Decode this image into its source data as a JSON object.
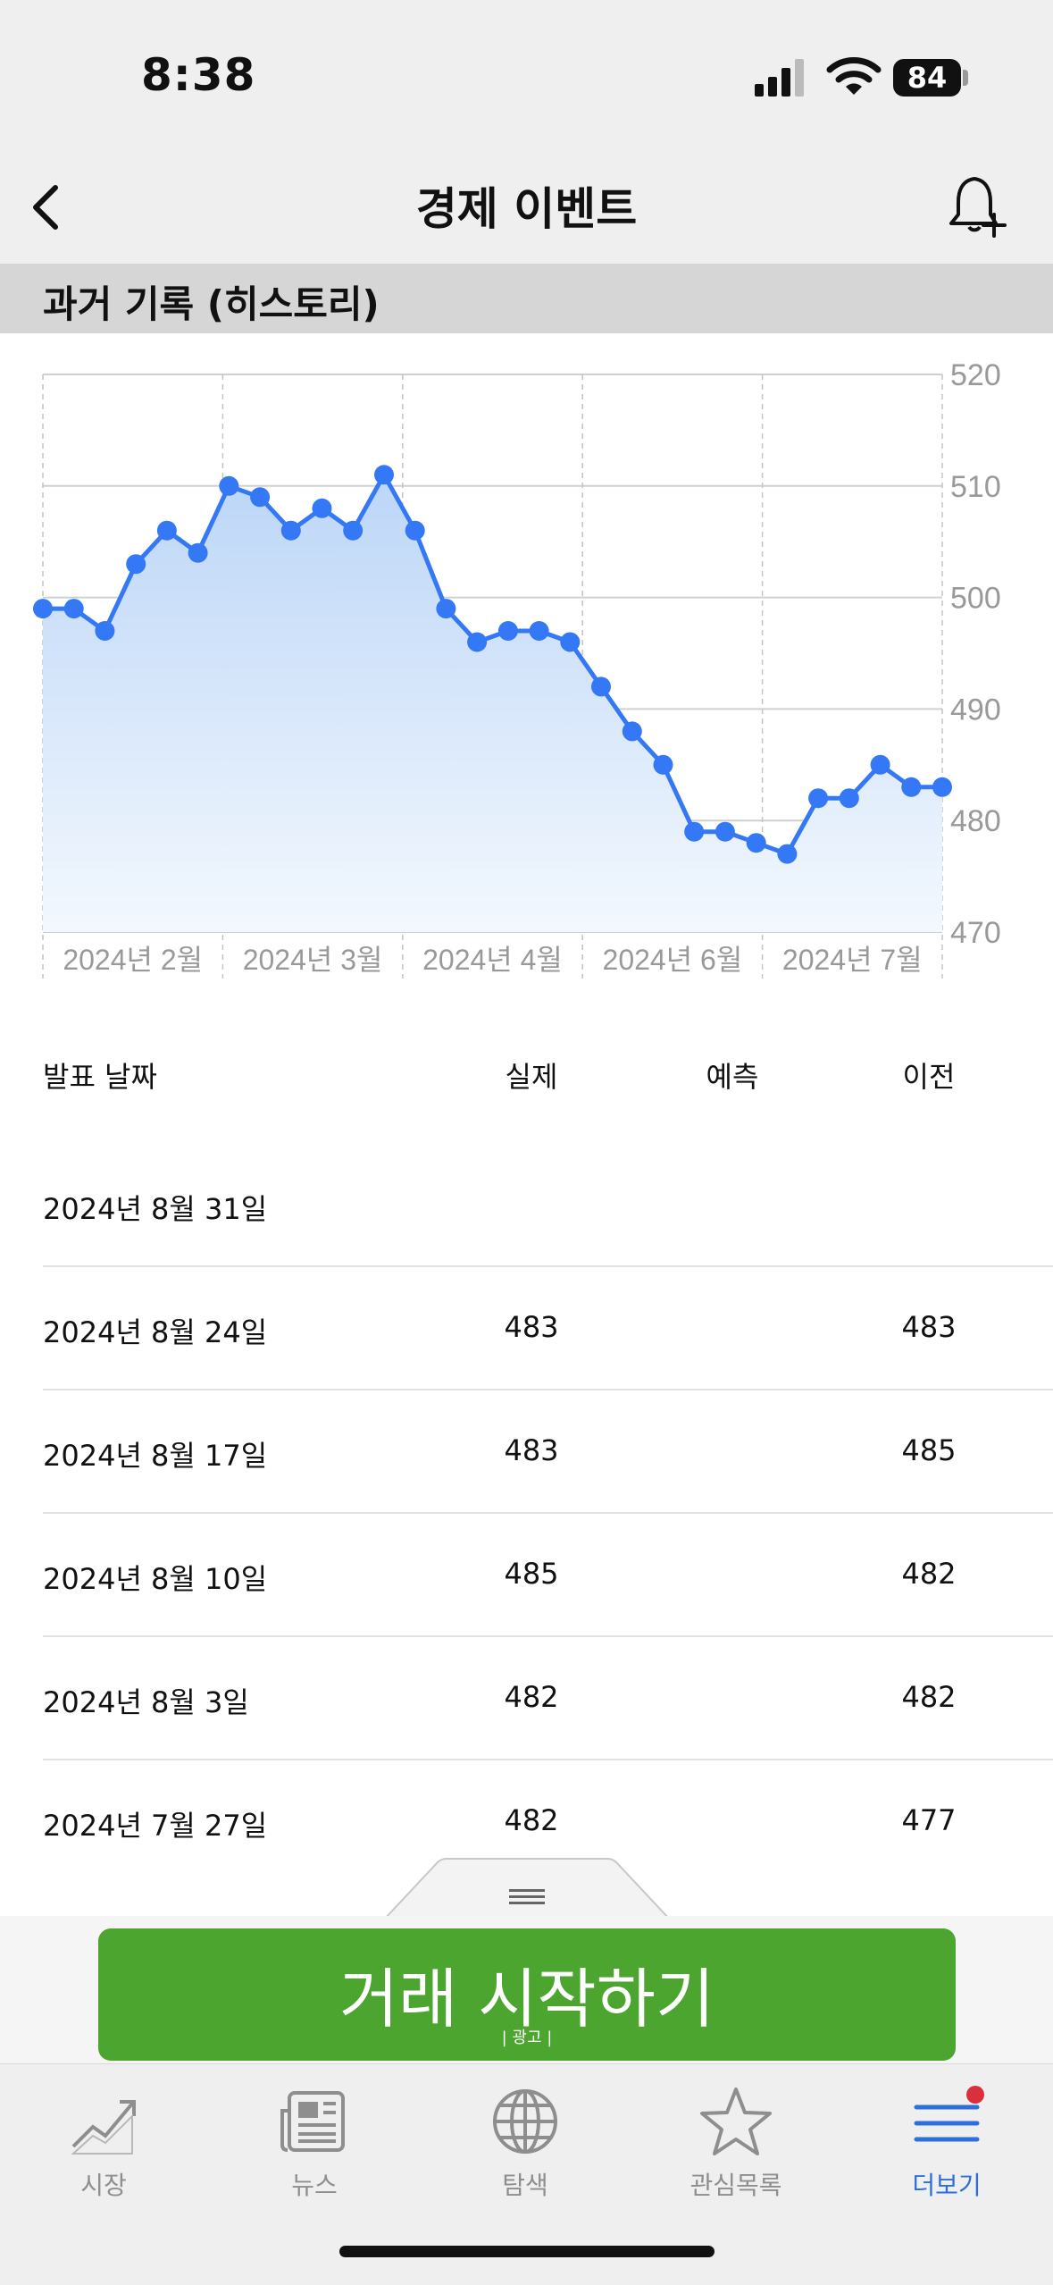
{
  "status_bar": {
    "time": "8:38",
    "battery": "84"
  },
  "header": {
    "title": "경제 이벤트"
  },
  "section": {
    "title": "과거 기록 (히스토리)"
  },
  "chart_data": {
    "type": "area",
    "y_ticks": [
      "520",
      "510",
      "500",
      "490",
      "480",
      "470"
    ],
    "ylim": [
      470,
      520
    ],
    "x_tick_labels": [
      "2024년 2월",
      "2024년 3월",
      "2024년 4월",
      "2024년 6월",
      "2024년 7월"
    ],
    "series": [
      {
        "values": [
          499,
          499,
          497,
          503,
          506,
          504,
          510,
          509,
          506,
          508,
          506,
          511,
          506,
          499,
          496,
          497,
          497,
          496,
          492,
          488,
          485,
          479,
          479,
          478,
          477,
          482,
          482,
          485,
          483,
          483
        ]
      }
    ],
    "grid": true,
    "colors": {
      "line": "#3478f6",
      "fill_top": "#bcd6f7",
      "fill_bottom": "#f3f8fe"
    }
  },
  "table": {
    "headers": {
      "date": "발표 날짜",
      "actual": "실제",
      "forecast": "예측",
      "previous": "이전"
    },
    "rows": [
      {
        "date": "2024년 8월 31일",
        "actual": "",
        "forecast": "",
        "previous": ""
      },
      {
        "date": "2024년 8월 24일",
        "actual": "483",
        "forecast": "",
        "previous": "483"
      },
      {
        "date": "2024년 8월 17일",
        "actual": "483",
        "forecast": "",
        "previous": "485"
      },
      {
        "date": "2024년 8월 10일",
        "actual": "485",
        "forecast": "",
        "previous": "482"
      },
      {
        "date": "2024년 8월 3일",
        "actual": "482",
        "forecast": "",
        "previous": "482"
      },
      {
        "date": "2024년 7월 27일",
        "actual": "482",
        "forecast": "",
        "previous": "477"
      }
    ]
  },
  "banner": {
    "text": "거래 시작하기",
    "ad_label": "| 광고 |"
  },
  "tabbar": {
    "items": [
      {
        "label": "시장",
        "icon": "chart-trend-icon"
      },
      {
        "label": "뉴스",
        "icon": "newspaper-icon"
      },
      {
        "label": "탐색",
        "icon": "globe-icon"
      },
      {
        "label": "관심목록",
        "icon": "star-icon"
      },
      {
        "label": "더보기",
        "icon": "menu-icon"
      }
    ],
    "active_label": "더보기"
  }
}
